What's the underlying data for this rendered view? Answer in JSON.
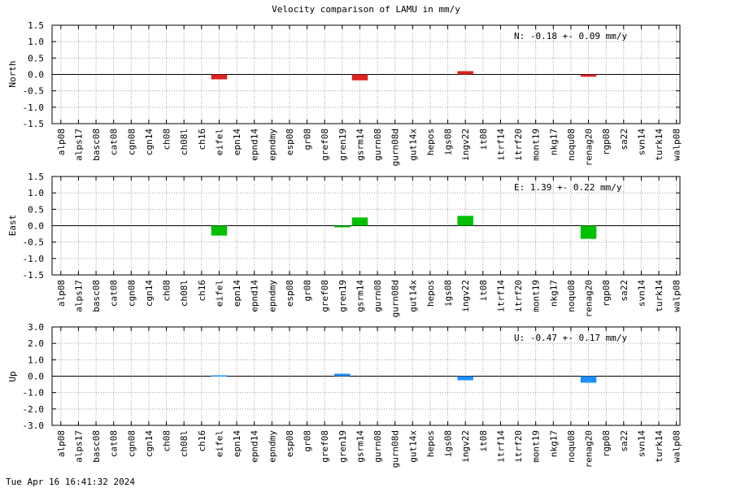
{
  "title": "Velocity comparison of LAMU in mm/y",
  "timestamp": "Tue Apr 16 16:41:32 2024",
  "chart_data": [
    {
      "type": "bar",
      "ylabel": "North",
      "ylim": [
        -1.5,
        1.5
      ],
      "yticks": [
        "1.5",
        "1.0",
        "0.5",
        "0.0",
        "-0.5",
        "-1.0",
        "-1.5"
      ],
      "ytick_values": [
        1.5,
        1.0,
        0.5,
        0.0,
        -0.5,
        -1.0,
        -1.5
      ],
      "grid": true,
      "color": "#dd2222",
      "annotation": "N:  -0.18 +-  0.09 mm/y",
      "categories": [
        "alp08",
        "alps17",
        "basc08",
        "cat08",
        "cgn08",
        "cgn14",
        "ch08",
        "ch08l",
        "ch16",
        "eifel",
        "epn14",
        "epnd14",
        "epndmy",
        "esp08",
        "gr08",
        "gref08",
        "gren19",
        "gsrm14",
        "gurn08",
        "gurn08d",
        "gut14x",
        "hepos",
        "igs08",
        "ingv22",
        "it08",
        "itrf14",
        "itrf20",
        "mont19",
        "nkg17",
        "noqu08",
        "renag20",
        "rgp08",
        "sa22",
        "svn14",
        "turk14",
        "walp08"
      ],
      "values": [
        null,
        null,
        null,
        null,
        null,
        null,
        null,
        null,
        null,
        -0.15,
        null,
        null,
        null,
        null,
        null,
        null,
        null,
        -0.18,
        null,
        null,
        null,
        null,
        null,
        0.1,
        null,
        null,
        null,
        null,
        null,
        null,
        -0.07,
        null,
        null,
        null,
        null,
        null
      ]
    },
    {
      "type": "bar",
      "ylabel": "East",
      "ylim": [
        -1.5,
        1.5
      ],
      "yticks": [
        "1.5",
        "1.0",
        "0.5",
        "0.0",
        "-0.5",
        "-1.0",
        "-1.5"
      ],
      "ytick_values": [
        1.5,
        1.0,
        0.5,
        0.0,
        -0.5,
        -1.0,
        -1.5
      ],
      "grid": true,
      "color": "#00c000",
      "annotation": "E:   1.39 +-  0.22 mm/y",
      "categories": [
        "alp08",
        "alps17",
        "basc08",
        "cat08",
        "cgn08",
        "cgn14",
        "ch08",
        "ch08l",
        "ch16",
        "eifel",
        "epn14",
        "epnd14",
        "epndmy",
        "esp08",
        "gr08",
        "gref08",
        "gren19",
        "gsrm14",
        "gurn08",
        "gurn08d",
        "gut14x",
        "hepos",
        "igs08",
        "ingv22",
        "it08",
        "itrf14",
        "itrf20",
        "mont19",
        "nkg17",
        "noqu08",
        "renag20",
        "rgp08",
        "sa22",
        "svn14",
        "turk14",
        "walp08"
      ],
      "values": [
        null,
        null,
        null,
        null,
        null,
        null,
        null,
        null,
        null,
        -0.3,
        null,
        null,
        null,
        null,
        null,
        null,
        -0.05,
        0.25,
        null,
        null,
        null,
        null,
        null,
        0.3,
        null,
        null,
        null,
        null,
        null,
        null,
        -0.4,
        null,
        null,
        null,
        null,
        null
      ]
    },
    {
      "type": "bar",
      "ylabel": "Up",
      "ylim": [
        -3.0,
        3.0
      ],
      "yticks": [
        "3.0",
        "2.0",
        "1.0",
        "0.0",
        "-1.0",
        "-2.0",
        "-3.0"
      ],
      "ytick_values": [
        3.0,
        2.0,
        1.0,
        0.0,
        -1.0,
        -2.0,
        -3.0
      ],
      "grid": true,
      "color": "#1e90ff",
      "annotation": "U:  -0.47 +-  0.17 mm/y",
      "categories": [
        "alp08",
        "alps17",
        "basc08",
        "cat08",
        "cgn08",
        "cgn14",
        "ch08",
        "ch08l",
        "ch16",
        "eifel",
        "epn14",
        "epnd14",
        "epndmy",
        "esp08",
        "gr08",
        "gref08",
        "gren19",
        "gsrm14",
        "gurn08",
        "gurn08d",
        "gut14x",
        "hepos",
        "igs08",
        "ingv22",
        "it08",
        "itrf14",
        "itrf20",
        "mont19",
        "nkg17",
        "noqu08",
        "renag20",
        "rgp08",
        "sa22",
        "svn14",
        "turk14",
        "walp08"
      ],
      "values": [
        null,
        null,
        null,
        null,
        null,
        null,
        null,
        null,
        null,
        0.05,
        null,
        null,
        null,
        null,
        null,
        null,
        0.15,
        null,
        null,
        null,
        null,
        null,
        null,
        -0.25,
        null,
        null,
        null,
        null,
        null,
        null,
        -0.4,
        null,
        null,
        null,
        null,
        null
      ]
    }
  ]
}
